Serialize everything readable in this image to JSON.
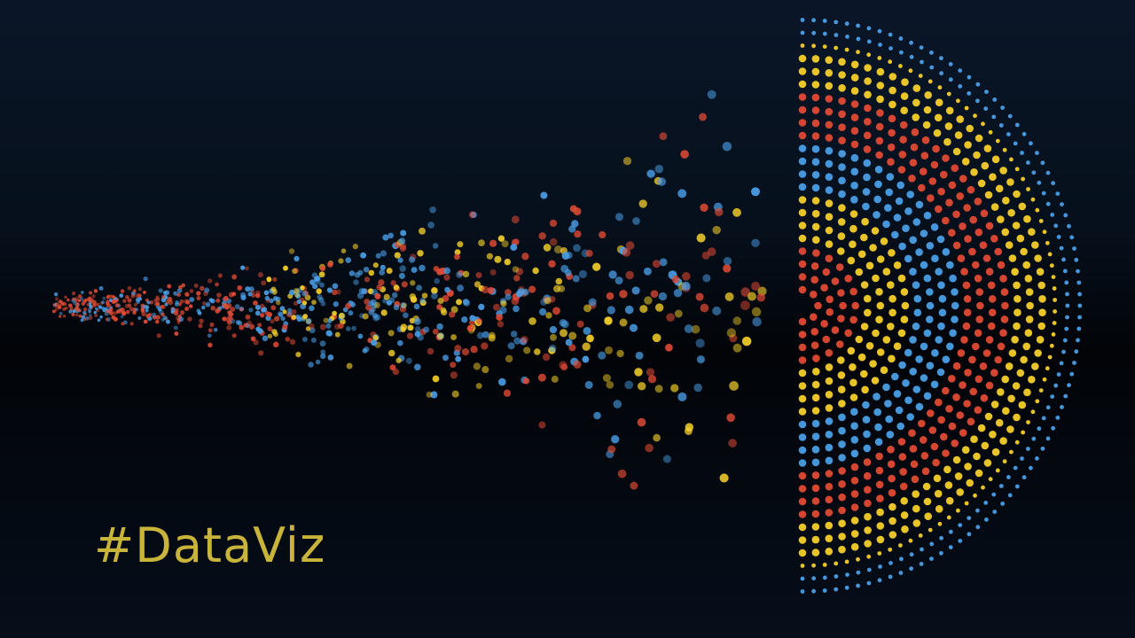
{
  "caption": "#DataViz",
  "colors": {
    "background": "#050a12",
    "red": "#e04a34",
    "blue": "#4a9ee6",
    "yellow": "#f5cf2a",
    "caption": "#c8b43a"
  },
  "artwork": {
    "style": "concentric semicircular dot rings dissolving into scattered dots",
    "ring_color_order": [
      "red",
      "yellow",
      "blue",
      "red",
      "yellow",
      "blue",
      "red"
    ]
  }
}
